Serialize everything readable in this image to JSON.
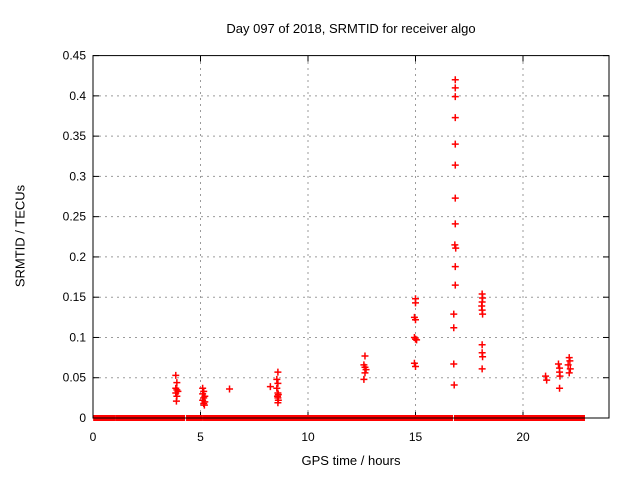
{
  "chart_data": {
    "type": "scatter",
    "title": "Day 097 of 2018, SRMTID for receiver algo",
    "xlabel": "GPS time / hours",
    "ylabel": "SRMTID / TECUs",
    "xlim": [
      0,
      24
    ],
    "ylim": [
      0,
      0.45
    ],
    "xticks": [
      0,
      5,
      10,
      15,
      20
    ],
    "xtick_labels": [
      "0",
      "5",
      "10",
      "15",
      "20"
    ],
    "yticks": [
      0,
      0.05,
      0.1,
      0.15,
      0.2,
      0.25,
      0.3,
      0.35,
      0.4,
      0.45
    ],
    "ytick_labels": [
      "0",
      "0.05",
      "0.1",
      "0.15",
      "0.2",
      "0.25",
      "0.3",
      "0.35",
      "0.4",
      "0.45"
    ],
    "grid": true,
    "legend": "none",
    "marker": "plus",
    "colors": {
      "marker": "#ff0000",
      "grid": "#9b9b9b",
      "border": "#000000",
      "background": "#ffffff"
    },
    "series": [
      {
        "name": "SRMTID",
        "points": [
          [
            3.85,
            0.053
          ],
          [
            3.9,
            0.044
          ],
          [
            3.85,
            0.037
          ],
          [
            3.9,
            0.035
          ],
          [
            3.95,
            0.033
          ],
          [
            3.85,
            0.031
          ],
          [
            3.9,
            0.027
          ],
          [
            3.88,
            0.021
          ],
          [
            5.1,
            0.037
          ],
          [
            5.15,
            0.033
          ],
          [
            5.1,
            0.03
          ],
          [
            5.2,
            0.027
          ],
          [
            5.15,
            0.025
          ],
          [
            5.1,
            0.022
          ],
          [
            5.2,
            0.02
          ],
          [
            5.15,
            0.018
          ],
          [
            5.18,
            0.016
          ],
          [
            6.35,
            0.036
          ],
          [
            8.6,
            0.057
          ],
          [
            8.55,
            0.048
          ],
          [
            8.6,
            0.043
          ],
          [
            8.25,
            0.039
          ],
          [
            8.55,
            0.037
          ],
          [
            8.6,
            0.031
          ],
          [
            8.62,
            0.029
          ],
          [
            8.58,
            0.027
          ],
          [
            8.6,
            0.025
          ],
          [
            8.62,
            0.022
          ],
          [
            8.6,
            0.019
          ],
          [
            12.65,
            0.077
          ],
          [
            12.6,
            0.066
          ],
          [
            12.65,
            0.063
          ],
          [
            12.7,
            0.06
          ],
          [
            12.65,
            0.056
          ],
          [
            12.6,
            0.048
          ],
          [
            15.0,
            0.148
          ],
          [
            15.0,
            0.143
          ],
          [
            14.95,
            0.125
          ],
          [
            15.0,
            0.122
          ],
          [
            14.95,
            0.1
          ],
          [
            15.0,
            0.098
          ],
          [
            15.05,
            0.097
          ],
          [
            14.95,
            0.068
          ],
          [
            15.0,
            0.064
          ],
          [
            16.85,
            0.42
          ],
          [
            16.85,
            0.41
          ],
          [
            16.85,
            0.399
          ],
          [
            16.85,
            0.373
          ],
          [
            16.85,
            0.34
          ],
          [
            16.85,
            0.314
          ],
          [
            16.85,
            0.273
          ],
          [
            16.85,
            0.241
          ],
          [
            16.83,
            0.215
          ],
          [
            16.87,
            0.211
          ],
          [
            16.85,
            0.188
          ],
          [
            16.85,
            0.165
          ],
          [
            16.78,
            0.129
          ],
          [
            16.78,
            0.112
          ],
          [
            16.78,
            0.067
          ],
          [
            16.8,
            0.041
          ],
          [
            18.1,
            0.154
          ],
          [
            18.12,
            0.149
          ],
          [
            18.1,
            0.144
          ],
          [
            18.08,
            0.139
          ],
          [
            18.1,
            0.134
          ],
          [
            18.12,
            0.129
          ],
          [
            18.1,
            0.091
          ],
          [
            18.1,
            0.081
          ],
          [
            18.12,
            0.076
          ],
          [
            18.1,
            0.061
          ],
          [
            21.05,
            0.052
          ],
          [
            21.1,
            0.047
          ],
          [
            21.65,
            0.067
          ],
          [
            21.7,
            0.062
          ],
          [
            21.7,
            0.057
          ],
          [
            21.72,
            0.052
          ],
          [
            21.7,
            0.037
          ],
          [
            22.15,
            0.075
          ],
          [
            22.18,
            0.071
          ],
          [
            22.1,
            0.066
          ],
          [
            22.2,
            0.061
          ],
          [
            22.15,
            0.056
          ]
        ]
      }
    ],
    "baseline_band": {
      "y": 0,
      "segments": [
        [
          0.1,
          0.93
        ],
        [
          1.12,
          1.78
        ],
        [
          1.95,
          2.06
        ],
        [
          2.14,
          3.16
        ],
        [
          3.3,
          4.19
        ],
        [
          4.42,
          5.02
        ],
        [
          5.21,
          5.8
        ],
        [
          5.92,
          6.6
        ],
        [
          6.74,
          7.8
        ],
        [
          7.86,
          8.14
        ],
        [
          8.18,
          8.7
        ],
        [
          8.84,
          9.38
        ],
        [
          9.44,
          9.66
        ],
        [
          9.72,
          10.58
        ],
        [
          10.68,
          13.16
        ],
        [
          13.3,
          14.04
        ],
        [
          14.1,
          14.2
        ],
        [
          14.28,
          14.93
        ],
        [
          15.07,
          16.65
        ],
        [
          16.88,
          18.6
        ],
        [
          18.7,
          18.84
        ],
        [
          18.92,
          19.1
        ],
        [
          19.18,
          19.32
        ],
        [
          19.42,
          19.56
        ],
        [
          19.7,
          19.9
        ],
        [
          20.05,
          20.79
        ],
        [
          20.93,
          21.52
        ],
        [
          21.64,
          22.0
        ],
        [
          22.18,
          22.79
        ]
      ]
    }
  }
}
